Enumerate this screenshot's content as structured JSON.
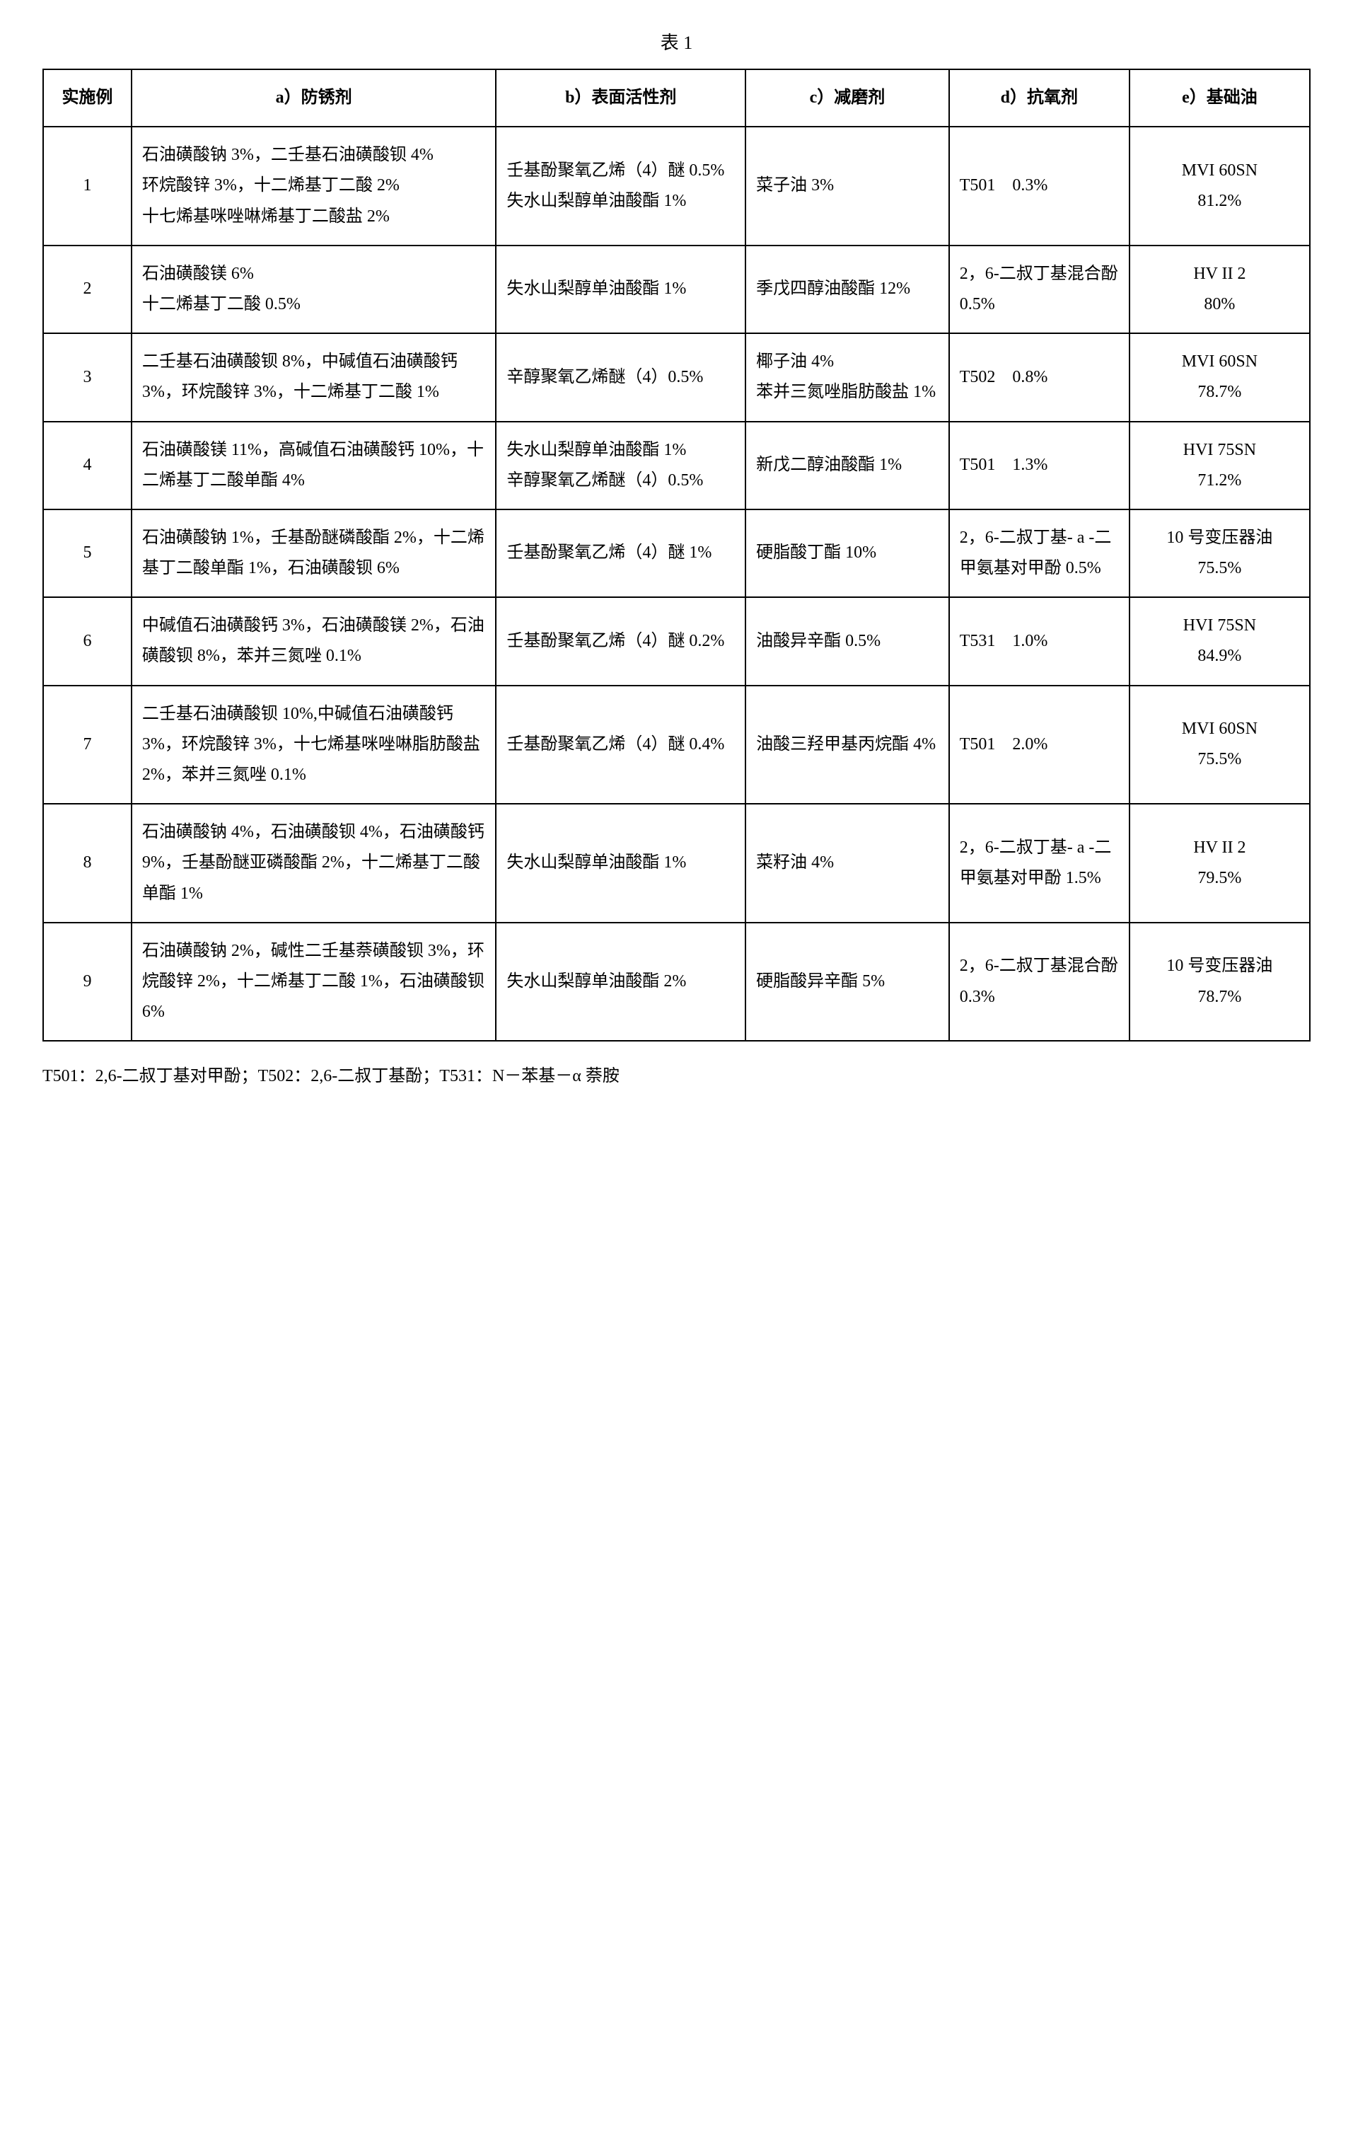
{
  "table_title": "表 1",
  "headers": {
    "num": "实施例",
    "a": "a）防锈剂",
    "b": "b）表面活性剂",
    "c": "c）减磨剂",
    "d": "d）抗氧剂",
    "e": "e）基础油"
  },
  "rows": [
    {
      "num": "1",
      "a": "石油磺酸钠 3%，二壬基石油磺酸钡 4%\n环烷酸锌 3%，十二烯基丁二酸 2%\n十七烯基咪唑啉烯基丁二酸盐 2%",
      "b": "壬基酚聚氧乙烯（4）醚 0.5%\n失水山梨醇单油酸酯 1%",
      "c": "菜子油 3%",
      "d": "T501　0.3%",
      "e": "MVI 60SN\n81.2%"
    },
    {
      "num": "2",
      "a": "石油磺酸镁 6%\n十二烯基丁二酸 0.5%",
      "b": "失水山梨醇单油酸酯 1%",
      "c": "季戊四醇油酸酯 12%",
      "d": "2，6-二叔丁基混合酚 0.5%",
      "e": "HV II 2\n80%"
    },
    {
      "num": "3",
      "a": "二壬基石油磺酸钡 8%，中碱值石油磺酸钙 3%，环烷酸锌 3%，十二烯基丁二酸 1%",
      "b": "辛醇聚氧乙烯醚（4）0.5%",
      "c": "椰子油 4%\n苯并三氮唑脂肪酸盐 1%",
      "d": "T502　0.8%",
      "e": "MVI 60SN\n78.7%"
    },
    {
      "num": "4",
      "a": "石油磺酸镁 11%，高碱值石油磺酸钙 10%，十二烯基丁二酸单酯 4%",
      "b": "失水山梨醇单油酸酯 1%\n辛醇聚氧乙烯醚（4）0.5%",
      "c": "新戊二醇油酸酯 1%",
      "d": "T501　1.3%",
      "e": "HVI 75SN\n71.2%"
    },
    {
      "num": "5",
      "a": "石油磺酸钠 1%，壬基酚醚磷酸酯 2%，十二烯基丁二酸单酯 1%，石油磺酸钡 6%",
      "b": "壬基酚聚氧乙烯（4）醚 1%",
      "c": "硬脂酸丁酯 10%",
      "d": "2，6-二叔丁基- a -二甲氨基对甲酚 0.5%",
      "e": "10 号变压器油\n75.5%"
    },
    {
      "num": "6",
      "a": "中碱值石油磺酸钙 3%，石油磺酸镁 2%，石油磺酸钡 8%，苯并三氮唑 0.1%",
      "b": "壬基酚聚氧乙烯（4）醚 0.2%",
      "c": "油酸异辛酯 0.5%",
      "d": "T531　1.0%",
      "e": "HVI 75SN\n84.9%"
    },
    {
      "num": "7",
      "a": "二壬基石油磺酸钡 10%,中碱值石油磺酸钙 3%，环烷酸锌 3%，十七烯基咪唑啉脂肪酸盐 2%，苯并三氮唑 0.1%",
      "b": "壬基酚聚氧乙烯（4）醚 0.4%",
      "c": "油酸三羟甲基丙烷酯 4%",
      "d": "T501　2.0%",
      "e": "MVI 60SN\n75.5%"
    },
    {
      "num": "8",
      "a": "石油磺酸钠 4%，石油磺酸钡 4%，石油磺酸钙 9%，壬基酚醚亚磷酸酯 2%，十二烯基丁二酸单酯 1%",
      "b": "失水山梨醇单油酸酯 1%",
      "c": "菜籽油 4%",
      "d": "2，6-二叔丁基- a -二甲氨基对甲酚 1.5%",
      "e": "HV II 2\n79.5%"
    },
    {
      "num": "9",
      "a": "石油磺酸钠 2%，碱性二壬基萘磺酸钡 3%，环烷酸锌 2%，十二烯基丁二酸 1%，石油磺酸钡 6%",
      "b": "失水山梨醇单油酸酯 2%",
      "c": "硬脂酸异辛酯 5%",
      "d": "2，6-二叔丁基混合酚 0.3%",
      "e": "10 号变压器油\n78.7%"
    }
  ],
  "footnote": "T501：2,6-二叔丁基对甲酚；T502：2,6-二叔丁基酚；T531：N－苯基－α 萘胺"
}
